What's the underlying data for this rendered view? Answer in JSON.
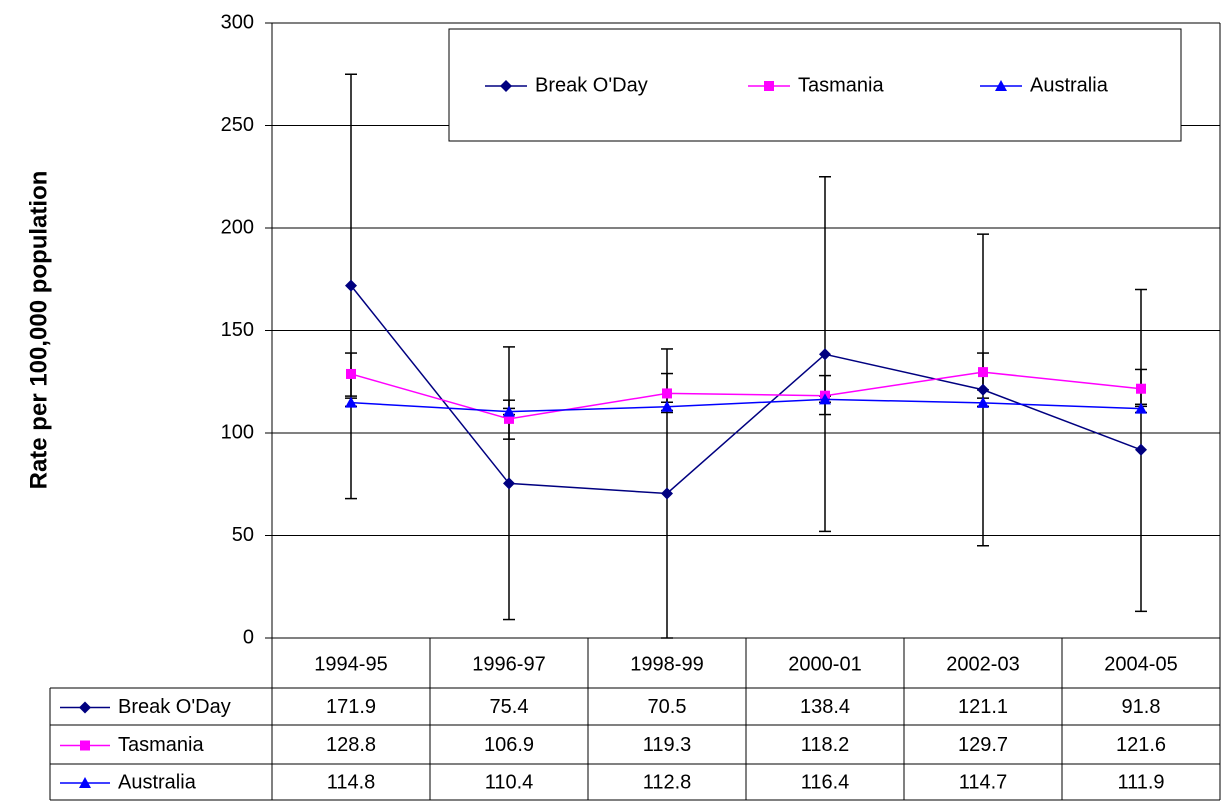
{
  "chart_data": {
    "type": "line",
    "y_label": "Rate per 100,000 population",
    "categories": [
      "1994-95",
      "1996-97",
      "1998-99",
      "2000-01",
      "2002-03",
      "2004-05"
    ],
    "series": [
      {
        "name": "Break O'Day",
        "color": "#000080",
        "marker": "diamond",
        "values": [
          171.9,
          75.4,
          70.5,
          138.4,
          121.1,
          91.8
        ],
        "lower": [
          68,
          9,
          0,
          52,
          45,
          13
        ],
        "upper": [
          275,
          142,
          141,
          225,
          197,
          170
        ]
      },
      {
        "name": "Tasmania",
        "color": "#ff00ff",
        "marker": "square",
        "values": [
          128.8,
          106.9,
          119.3,
          118.2,
          129.7,
          121.6
        ],
        "lower": [
          118,
          97,
          110,
          109,
          121,
          113
        ],
        "upper": [
          139,
          116,
          129,
          128,
          139,
          131
        ]
      },
      {
        "name": "Australia",
        "color": "#0000ff",
        "marker": "triangle",
        "values": [
          114.8,
          110.4,
          112.8,
          116.4,
          114.7,
          111.9
        ],
        "lower": [
          113,
          109,
          111,
          115,
          113,
          110
        ],
        "upper": [
          117,
          112,
          115,
          118,
          117,
          114
        ]
      }
    ],
    "ylim": [
      0,
      300
    ],
    "yticks": [
      0,
      50,
      100,
      150,
      200,
      250,
      300
    ],
    "grid": true
  }
}
